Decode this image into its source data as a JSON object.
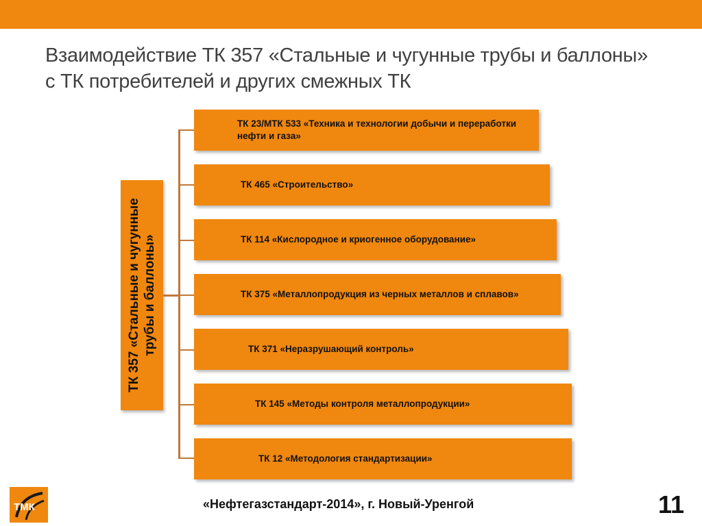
{
  "title": "Взаимодействие ТК 357 «Стальные и чугунные трубы и баллоны» с ТК потребителей и других смежных ТК",
  "central_committee": "ТК 357 «Стальные и чугунные трубы и баллоны»",
  "committees": [
    "ТК 23/МТК 533 «Техника и технологии добычи и переработки нефти и газа»",
    "ТК 465 «Строительство»",
    "ТК 114 «Кислородное и криогенное оборудование»",
    "ТК 375 «Металлопродукция из черных металлов и сплавов»",
    "ТК 371 «Неразрушающий контроль»",
    "ТК 145 «Методы контроля металлопродукции»",
    "ТК 12 «Методология стандартизации»"
  ],
  "footer": {
    "logo_text": "ТМК",
    "event": "«Нефтегазстандарт-2014», г. Новый-Уренгой",
    "page_number": "11"
  },
  "colors": {
    "accent": "#f0870f",
    "connector": "#c0783a",
    "title_text": "#404040"
  }
}
